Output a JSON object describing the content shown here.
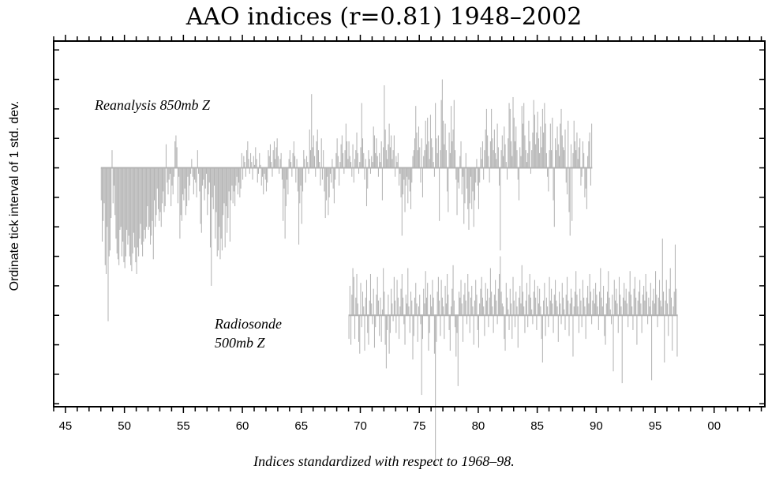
{
  "chart_data": {
    "type": "bar",
    "title": "AAO indices (r=0.81) 1948–2002",
    "xlabel": "Indices standardized with respect to 1968–98.",
    "ylabel": "Ordinate tick interval of 1 std. dev.",
    "x_ticks": [
      "45",
      "50",
      "55",
      "60",
      "65",
      "70",
      "75",
      "80",
      "85",
      "90",
      "95",
      "00"
    ],
    "xlim": [
      1944,
      2004.3
    ],
    "ylim": [
      -8.1,
      4.3
    ],
    "grid": false,
    "bar_color": "#b4b4b4",
    "series": [
      {
        "name": "Reanalysis 850mb Z",
        "label_lines": [
          "Reanalysis 850mb Z"
        ],
        "baseline": 0,
        "start": 1948.0,
        "values": [
          -1.1,
          -2.5,
          -1.8,
          -1.2,
          -3.3,
          -3.6,
          -2.0,
          -5.2,
          -3.0,
          -2.8,
          -1.7,
          0.6,
          -1.2,
          -0.6,
          -1.6,
          -2.4,
          -2.9,
          -3.1,
          -3.3,
          -2.1,
          -2.0,
          -3.0,
          -2.5,
          -3.2,
          -3.4,
          -3.0,
          -2.1,
          -2.6,
          -2.3,
          -3.0,
          -3.3,
          -3.5,
          -2.9,
          -2.2,
          -2.7,
          -3.2,
          -3.6,
          -2.7,
          -3.0,
          -2.4,
          -1.9,
          -2.6,
          -3.0,
          -2.5,
          -2.1,
          -2.4,
          -2.0,
          -1.3,
          -2.1,
          -2.0,
          -2.6,
          -2.3,
          -1.8,
          -3.1,
          -1.1,
          -2.0,
          -1.6,
          -0.7,
          -1.4,
          -1.8,
          -1.5,
          -2.0,
          -1.2,
          -0.8,
          -1.5,
          -1.3,
          0.8,
          -0.5,
          -0.9,
          -0.4,
          -0.2,
          -1.3,
          -0.6,
          -0.9,
          -0.3,
          0.9,
          1.1,
          0.7,
          -1.2,
          -0.3,
          -2.4,
          -1.6,
          -1.8,
          -0.9,
          -1.1,
          -0.7,
          -1.6,
          -1.3,
          -0.3,
          -1.1,
          -0.6,
          -0.2,
          0.3,
          -0.3,
          -0.9,
          -0.4,
          -0.5,
          -1.0,
          0.6,
          -0.2,
          -0.8,
          -1.9,
          -2.2,
          -0.6,
          -0.4,
          -1.1,
          -0.7,
          -0.2,
          -1.6,
          -0.9,
          -0.5,
          -2.7,
          -4.0,
          -1.0,
          -1.4,
          -0.6,
          -2.4,
          -1.5,
          -3.0,
          -2.8,
          -2.0,
          -3.1,
          -2.4,
          -2.8,
          -1.6,
          -1.2,
          -2.7,
          -1.3,
          -2.2,
          -1.7,
          -0.8,
          -2.5,
          -1.1,
          -0.6,
          -1.2,
          -0.8,
          -1.3,
          -0.6,
          -0.3,
          -0.9,
          -0.5,
          -1.0,
          -0.7,
          0.5,
          -0.4,
          0.4,
          0.2,
          -0.3,
          0.6,
          0.9,
          0.3,
          -0.2,
          0.5,
          0.2,
          -0.4,
          0.4,
          0.1,
          0.7,
          0.3,
          -0.5,
          -0.2,
          0.5,
          0.1,
          -0.6,
          -0.3,
          -0.9,
          -0.2,
          -0.4,
          -0.8,
          -0.5,
          0.6,
          0.4,
          0.8,
          0.2,
          -0.3,
          0.6,
          0.9,
          0.3,
          0.7,
          1.0,
          0.4,
          -0.2,
          0.3,
          0.5,
          -0.4,
          -1.8,
          -0.7,
          -2.4,
          -1.3,
          -0.4,
          -0.9,
          0.3,
          0.6,
          0.2,
          -0.3,
          0.5,
          0.9,
          0.4,
          -0.5,
          0.3,
          -0.8,
          -2.6,
          -1.2,
          -0.6,
          -1.9,
          -0.8,
          0.6,
          0.3,
          -0.5,
          0.4,
          0.2,
          -0.2,
          1.3,
          0.6,
          2.5,
          0.7,
          1.1,
          0.4,
          -0.3,
          0.9,
          1.3,
          0.6,
          0.2,
          -0.6,
          1.0,
          -0.4,
          0.6,
          -0.8,
          -1.7,
          -1.1,
          -0.3,
          -1.6,
          -1.0,
          -0.2,
          -0.5,
          0.3,
          -0.7,
          -1.2,
          -0.4,
          0.5,
          1.0,
          0.4,
          -0.6,
          0.2,
          0.8,
          1.1,
          0.5,
          -0.2,
          0.6,
          1.5,
          0.9,
          0.3,
          0.9,
          0.4,
          0.2,
          -0.3,
          0.8,
          -0.5,
          0.3,
          0.6,
          1.2,
          0.5,
          -0.2,
          0.2,
          0.7,
          2.2,
          1.0,
          0.5,
          -0.4,
          0.3,
          -1.3,
          -0.7,
          0.6,
          0.3,
          -0.2,
          0.4,
          0.2,
          1.4,
          1.1,
          0.5,
          1.0,
          0.4,
          -0.3,
          0.5,
          0.2,
          0.9,
          -1.1,
          0.7,
          2.8,
          1.3,
          0.6,
          0.3,
          0.8,
          1.5,
          0.7,
          1.1,
          0.3,
          0.6,
          1.1,
          -0.3,
          0.4,
          0.2,
          0.5,
          -0.6,
          -0.2,
          -1.0,
          -2.3,
          -0.9,
          -0.4,
          -1.5,
          -0.6,
          -0.3,
          -1.2,
          -0.4,
          -0.8,
          -1.4,
          -0.5,
          0.4,
          0.6,
          1.0,
          2.1,
          1.2,
          0.6,
          1.4,
          0.7,
          -0.5,
          1.0,
          -1.0,
          0.4,
          0.6,
          1.6,
          0.8,
          1.7,
          0.9,
          0.3,
          1.8,
          1.0,
          0.7,
          0.2,
          -0.3,
          2.2,
          1.0,
          0.5,
          1.1,
          -1.8,
          0.6,
          2.3,
          3.0,
          1.6,
          0.8,
          1.5,
          0.6,
          -0.8,
          -1.5,
          1.2,
          0.5,
          2.1,
          0.9,
          1.3,
          2.3,
          0.6,
          -0.4,
          -1.6,
          -0.5,
          -0.7,
          0.4,
          0.9,
          -0.9,
          -0.3,
          -1.9,
          -1.2,
          0.5,
          -0.7,
          -1.4,
          -2.1,
          -1.2,
          -0.3,
          -1.4,
          -0.8,
          -2.0,
          -1.1,
          -0.5,
          0.3,
          -0.6,
          -1.4,
          -0.5,
          0.7,
          0.3,
          0.9,
          -0.4,
          0.6,
          1.3,
          2.0,
          1.1,
          0.4,
          -0.5,
          0.9,
          2.0,
          1.0,
          0.6,
          1.3,
          0.5,
          0.3,
          1.5,
          0.7,
          -0.6,
          -2.8,
          0.6,
          1.1,
          0.4,
          1.4,
          0.8,
          0.2,
          -0.4,
          1.0,
          2.2,
          2.0,
          0.9,
          0.4,
          2.4,
          1.7,
          0.9,
          1.4,
          0.6,
          -0.4,
          -1.1,
          0.7,
          0.4,
          2.1,
          1.5,
          2.2,
          1.1,
          0.6,
          0.2,
          0.5,
          1.6,
          0.9,
          -0.2,
          0.6,
          1.2,
          2.3,
          1.8,
          0.8,
          1.2,
          1.9,
          1.0,
          0.5,
          1.4,
          0.7,
          2.0,
          1.2,
          2.2,
          1.5,
          0.5,
          -0.3,
          -0.8,
          0.6,
          1.5,
          0.6,
          1.7,
          -1.1,
          -2.0,
          1.0,
          0.6,
          1.4,
          0.8,
          0.4,
          1.5,
          2.0,
          1.1,
          0.7,
          0.6,
          1.3,
          -0.5,
          -0.9,
          1.6,
          -1.5,
          -2.3,
          0.8,
          -1.8,
          0.5,
          1.6,
          0.9,
          0.6,
          1.2,
          0.3,
          0.7,
          1.0,
          -0.6,
          -0.3,
          0.9,
          0.5,
          -1.0,
          -0.7,
          -1.4,
          0.4,
          0.9,
          1.2,
          -0.6,
          1.5
        ]
      },
      {
        "name": "Radiosonde 500mb Z",
        "label_lines": [
          "Radiosonde",
          "500mb Z"
        ],
        "baseline": -5,
        "start": 1969.0,
        "values": [
          -0.8,
          1.0,
          -1.0,
          0.7,
          1.6,
          1.3,
          -0.8,
          0.6,
          1.4,
          0.4,
          -0.9,
          -1.3,
          1.1,
          -0.4,
          0.8,
          0.3,
          -1.2,
          0.6,
          1.2,
          -0.6,
          -1.0,
          0.5,
          1.4,
          0.4,
          -0.3,
          0.9,
          -1.1,
          -0.4,
          0.7,
          1.3,
          0.5,
          -0.7,
          0.6,
          -0.9,
          0.2,
          1.6,
          0.8,
          -1.0,
          -1.8,
          -0.5,
          0.7,
          -1.3,
          -0.6,
          0.9,
          0.4,
          -0.2,
          1.3,
          0.5,
          -0.6,
          1.2,
          0.6,
          -0.8,
          0.3,
          0.9,
          1.4,
          0.6,
          -0.3,
          -1.0,
          0.7,
          0.4,
          1.6,
          0.3,
          -0.6,
          0.8,
          0.5,
          -1.5,
          -0.7,
          0.6,
          1.1,
          0.4,
          -0.9,
          0.3,
          0.7,
          -0.3,
          -2.7,
          -0.8,
          0.9,
          0.4,
          1.5,
          0.6,
          1.1,
          -1.2,
          -0.6,
          0.7,
          0.3,
          1.2,
          0.6,
          -1.3,
          -5.1,
          -0.9,
          0.8,
          1.3,
          0.5,
          -0.7,
          1.2,
          0.6,
          0.3,
          -0.8,
          1.0,
          0.4,
          1.4,
          0.7,
          -0.5,
          -1.2,
          0.3,
          0.9,
          1.7,
          0.5,
          -0.4,
          -1.4,
          -0.6,
          -2.4,
          0.8,
          0.6,
          1.2,
          0.4,
          -0.9,
          0.7,
          1.1,
          0.5,
          -0.3,
          1.4,
          0.8,
          -0.6,
          0.6,
          1.0,
          0.3,
          -1.0,
          0.5,
          1.2,
          0.7,
          -0.5,
          -1.1,
          0.4,
          0.9,
          1.3,
          0.6,
          0.3,
          -0.7,
          1.1,
          0.5,
          0.9,
          -0.4,
          0.6,
          1.6,
          0.8,
          0.3,
          -0.6,
          0.7,
          1.2,
          0.5,
          -0.3,
          0.9,
          1.4,
          2.0,
          0.8,
          0.4,
          0.3,
          -0.8,
          -1.2,
          1.1,
          0.6,
          0.2,
          -0.5,
          0.9,
          0.4,
          -0.8,
          1.3,
          0.5,
          -0.4,
          0.8,
          0.3,
          -1.1,
          0.6,
          1.0,
          0.4,
          1.7,
          0.8,
          0.3,
          -0.6,
          0.5,
          1.1,
          -0.4,
          0.7,
          1.4,
          0.6,
          0.2,
          -0.3,
          0.8,
          1.2,
          0.6,
          -0.5,
          1.0,
          0.4,
          0.9,
          0.3,
          -0.8,
          -1.6,
          0.5,
          1.1,
          -0.7,
          0.6,
          0.3,
          -0.4,
          1.3,
          0.5,
          0.9,
          0.4,
          -0.6,
          0.7,
          1.2,
          0.5,
          0.3,
          -0.9,
          0.8,
          0.4,
          -0.3,
          1.1,
          0.6,
          0.2,
          -0.5,
          0.7,
          1.3,
          0.5,
          -0.7,
          0.4,
          0.9,
          0.6,
          -1.4,
          0.3,
          0.8,
          1.5,
          0.7,
          0.3,
          -0.6,
          0.9,
          0.5,
          -0.4,
          1.2,
          0.6,
          0.3,
          -0.8,
          0.6,
          1.0,
          0.4,
          1.4,
          0.8,
          -0.3,
          0.5,
          0.9,
          0.4,
          1.1,
          0.7,
          0.3,
          -0.5,
          0.8,
          1.6,
          0.6,
          0.3,
          1.0,
          -0.7,
          -1.0,
          0.4,
          0.8,
          1.5,
          0.6,
          0.2,
          -0.3,
          0.7,
          -1.9,
          1.2,
          0.5,
          0.9,
          0.4,
          -0.6,
          1.3,
          0.7,
          0.3,
          -2.3,
          0.6,
          1.1,
          0.5,
          0.9,
          0.4,
          -0.4,
          0.8,
          1.5,
          0.7,
          0.3,
          -0.5,
          0.9,
          1.3,
          0.6,
          -1.0,
          0.5,
          0.8,
          1.2,
          0.4,
          -0.6,
          0.7,
          1.0,
          0.5,
          1.4,
          0.8,
          -0.3,
          0.6,
          0.3,
          1.1,
          -2.2,
          0.5,
          0.9,
          0.4,
          1.5,
          0.7,
          -0.4,
          0.6,
          1.2,
          0.5,
          0.3,
          2.6,
          0.8,
          -1.6,
          0.5,
          1.2,
          0.4,
          -0.7,
          0.9,
          1.6,
          0.6,
          -1.2,
          0.3,
          0.8,
          2.4,
          0.9,
          -1.4
        ]
      }
    ]
  }
}
